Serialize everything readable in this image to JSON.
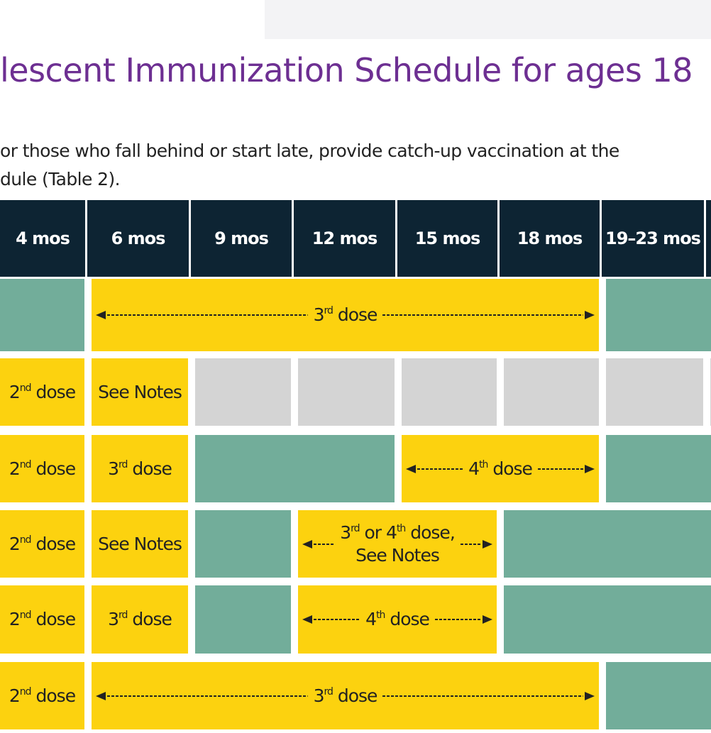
{
  "header": {
    "title": "lescent Immunization Schedule for ages 18",
    "lines": [
      "or those who fall behind or start late, provide catch-up vaccination at the",
      "dule (Table 2)."
    ]
  },
  "table": {
    "columns": [
      "4 mos",
      "6 mos",
      "9 mos",
      "12 mos",
      "15 mos",
      "18 mos",
      "19–23 mos",
      ""
    ],
    "colors": {
      "header": "#0d2433",
      "yellow": "#fcd20f",
      "green": "#72ad9a",
      "gray": "#d4d4d4"
    },
    "rows": [
      [
        {
          "fill": "green",
          "span": 1
        },
        {
          "fill": "yellow",
          "span": 5,
          "arrow": true,
          "lines": [
            "3rd dose"
          ]
        },
        {
          "fill": "green",
          "span": 2
        }
      ],
      [
        {
          "fill": "yellow",
          "span": 1,
          "lines": [
            "2nd dose"
          ]
        },
        {
          "fill": "yellow",
          "span": 1,
          "lines": [
            "See Notes"
          ]
        },
        {
          "fill": "gray",
          "span": 1
        },
        {
          "fill": "gray",
          "span": 1
        },
        {
          "fill": "gray",
          "span": 1
        },
        {
          "fill": "gray",
          "span": 1
        },
        {
          "fill": "gray",
          "span": 1
        },
        {
          "fill": "gray",
          "span": 1
        }
      ],
      [
        {
          "fill": "yellow",
          "span": 1,
          "lines": [
            "2nd dose"
          ]
        },
        {
          "fill": "yellow",
          "span": 1,
          "lines": [
            "3rd dose"
          ]
        },
        {
          "fill": "green",
          "span": 2
        },
        {
          "fill": "yellow",
          "span": 2,
          "arrow": true,
          "lines": [
            "4th dose"
          ]
        },
        {
          "fill": "green",
          "span": 2
        }
      ],
      [
        {
          "fill": "yellow",
          "span": 1,
          "lines": [
            "2nd dose"
          ]
        },
        {
          "fill": "yellow",
          "span": 1,
          "lines": [
            "See Notes"
          ]
        },
        {
          "fill": "green",
          "span": 1
        },
        {
          "fill": "yellow",
          "span": 2,
          "arrow": true,
          "lines": [
            "3rd or 4th dose,",
            "See Notes"
          ]
        },
        {
          "fill": "green",
          "span": 3
        }
      ],
      [
        {
          "fill": "yellow",
          "span": 1,
          "lines": [
            "2nd dose"
          ]
        },
        {
          "fill": "yellow",
          "span": 1,
          "lines": [
            "3rd dose"
          ]
        },
        {
          "fill": "green",
          "span": 1
        },
        {
          "fill": "yellow",
          "span": 2,
          "arrow": true,
          "lines": [
            "4th dose"
          ]
        },
        {
          "fill": "green",
          "span": 3
        }
      ],
      [
        {
          "fill": "yellow",
          "span": 1,
          "lines": [
            "2nd dose"
          ]
        },
        {
          "fill": "yellow",
          "span": 5,
          "arrow": true,
          "lines": [
            "3rd dose"
          ]
        },
        {
          "fill": "green",
          "span": 2
        }
      ]
    ]
  }
}
